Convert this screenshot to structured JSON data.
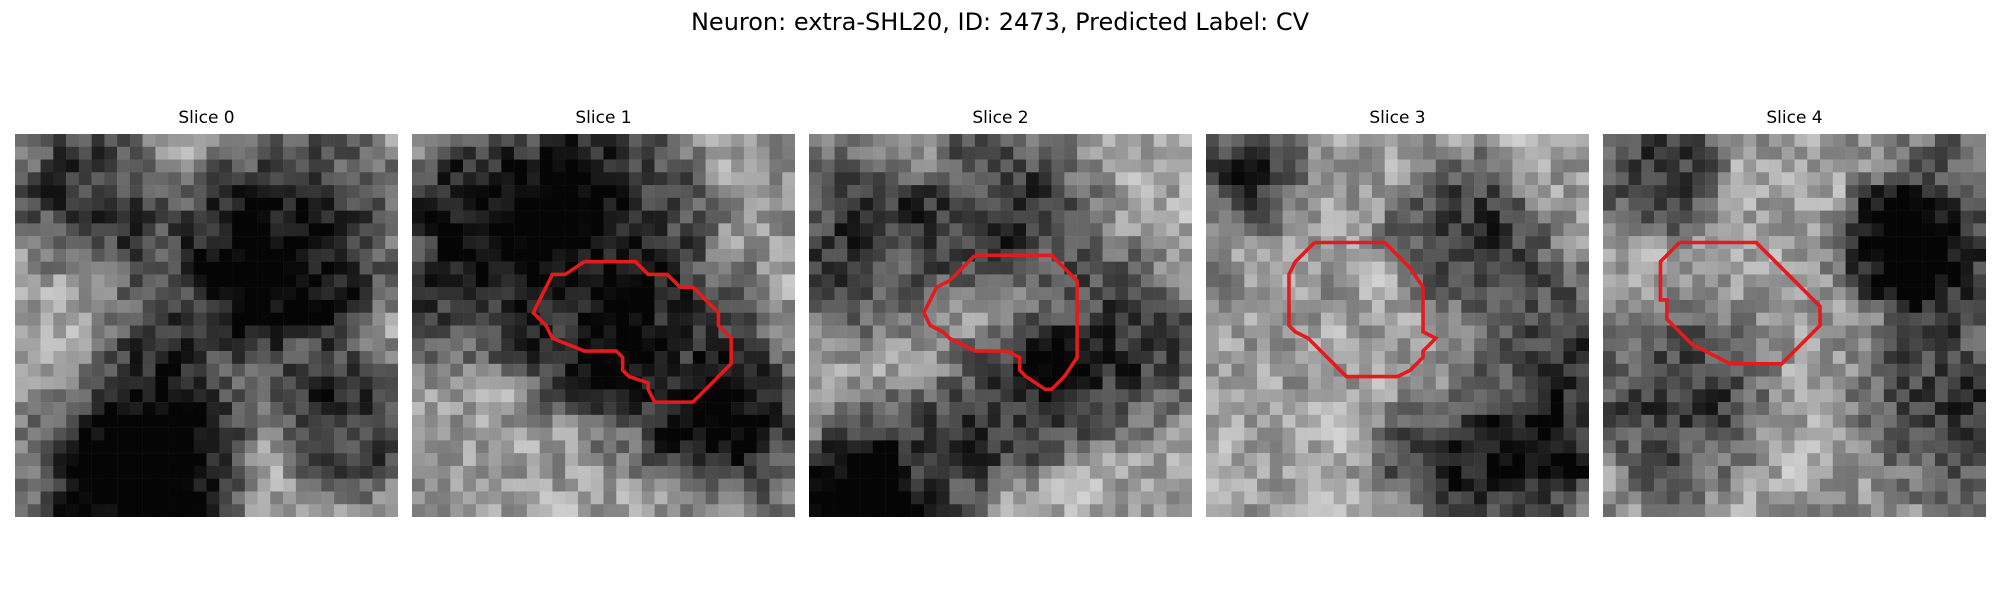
{
  "figure": {
    "title": "Neuron: extra-SHL20, ID: 2473, Predicted Label: CV",
    "contour_color": "#e41a1c"
  },
  "panels": [
    {
      "title": "Slice 0",
      "has_contour": false
    },
    {
      "title": "Slice 1",
      "has_contour": true
    },
    {
      "title": "Slice 2",
      "has_contour": true
    },
    {
      "title": "Slice 3",
      "has_contour": true
    },
    {
      "title": "Slice 4",
      "has_contour": true
    }
  ]
}
